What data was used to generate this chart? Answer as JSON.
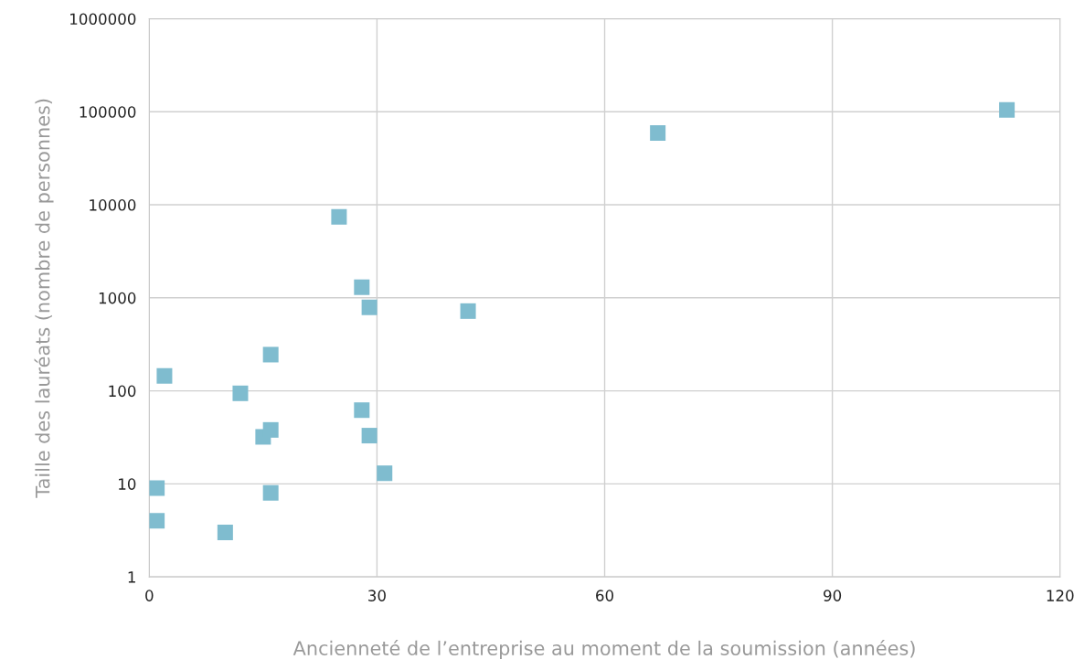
{
  "chart_data": {
    "type": "scatter",
    "xlabel": "Ancienneté de l’entreprise au moment de la soumission (années)",
    "ylabel": "Taille des lauréats (nombre de personnes)",
    "x": [
      1,
      1,
      2,
      10,
      12,
      15,
      16,
      16,
      16,
      25,
      28,
      29,
      28,
      29,
      31,
      42,
      67,
      113
    ],
    "values": [
      9,
      4,
      145,
      3,
      94,
      32,
      38,
      8,
      245,
      7400,
      1300,
      790,
      62,
      33,
      13,
      720,
      59000,
      105000
    ],
    "color": "#7fbccf",
    "marker": "square",
    "log": "y",
    "grid": true,
    "xlim": [
      0,
      120
    ],
    "xticks": [
      0,
      30,
      60,
      90,
      120
    ],
    "ylim": [
      1,
      1000000
    ],
    "yticks": [
      1,
      10,
      100,
      1000,
      10000,
      100000,
      1000000
    ]
  }
}
